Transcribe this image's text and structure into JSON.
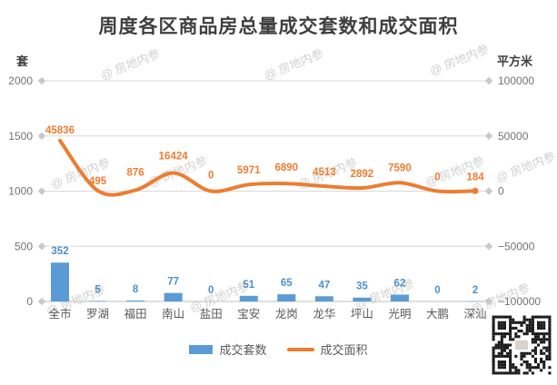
{
  "title": "周度各区商品房总量成交套数和成交面积",
  "left_axis": {
    "unit": "套",
    "ticks": [
      "2000",
      "1500",
      "1000",
      "500",
      "0"
    ]
  },
  "right_axis": {
    "unit": "平方米",
    "ticks": [
      "100000",
      "50000",
      "0",
      "-50000",
      "-100000"
    ]
  },
  "legend": {
    "items": [
      {
        "label": "成交套数",
        "type": "bar",
        "color": "#5B9BD5"
      },
      {
        "label": "成交面积",
        "type": "line",
        "color": "#ED7D31"
      }
    ]
  },
  "watermark_text": "@ 房地内参",
  "colors": {
    "bar": "#5B9BD5",
    "line": "#ED7D31",
    "grid": "#D9D9D9",
    "axis": "#BFBFBF",
    "diamond": "#C9C9C9",
    "tick_text": "#737373",
    "category_text": "#595959",
    "bar_label": "#4E8FCB",
    "line_label": "#ED7D31",
    "title_text": "#3f3f3f"
  },
  "chart_data": {
    "type": "bar",
    "subtype": "combo-bar-line",
    "title": "周度各区商品房总量成交套数和成交面积",
    "categories": [
      "全市",
      "罗湖",
      "福田",
      "南山",
      "盐田",
      "宝安",
      "龙岗",
      "龙华",
      "坪山",
      "光明",
      "大鹏",
      "深汕"
    ],
    "series": [
      {
        "name": "成交套数",
        "type": "bar",
        "axis": "left",
        "unit": "套",
        "color": "#5B9BD5",
        "values": [
          352,
          5,
          8,
          77,
          0,
          51,
          65,
          47,
          35,
          62,
          0,
          2
        ]
      },
      {
        "name": "成交面积",
        "type": "line",
        "axis": "right",
        "unit": "平方米",
        "color": "#ED7D31",
        "values": [
          45836,
          495,
          876,
          16424,
          0,
          5971,
          6890,
          4513,
          2892,
          7590,
          0,
          184
        ]
      }
    ],
    "left_axis_range": [
      0,
      2000
    ],
    "right_axis_range": [
      -100000,
      100000
    ],
    "grid": true,
    "data_labels": true,
    "legend_position": "bottom"
  }
}
